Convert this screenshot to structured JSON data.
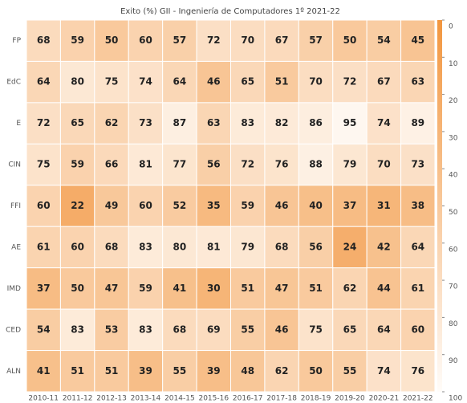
{
  "chart_data": {
    "type": "heatmap",
    "title": "Exito (%) GII - Ingeniería de Computadores 1º 2021-22",
    "categories": [
      "2010-11",
      "2011-12",
      "2012-13",
      "2013-14",
      "2014-15",
      "2015-16",
      "2016-17",
      "2017-18",
      "2018-19",
      "2019-20",
      "2020-21",
      "2021-22"
    ],
    "y_categories": [
      "FP",
      "EdC",
      "E",
      "CIN",
      "FFI",
      "AE",
      "IMD",
      "CED",
      "ALN"
    ],
    "values": [
      [
        68,
        59,
        50,
        60,
        57,
        72,
        70,
        67,
        57,
        50,
        54,
        45
      ],
      [
        64,
        80,
        75,
        74,
        64,
        46,
        65,
        51,
        70,
        72,
        67,
        63
      ],
      [
        72,
        65,
        62,
        73,
        87,
        63,
        83,
        82,
        86,
        95,
        74,
        89
      ],
      [
        75,
        59,
        66,
        81,
        77,
        56,
        72,
        76,
        88,
        79,
        70,
        73
      ],
      [
        60,
        22,
        49,
        60,
        52,
        35,
        59,
        46,
        40,
        37,
        31,
        38
      ],
      [
        61,
        60,
        68,
        83,
        80,
        81,
        79,
        68,
        56,
        24,
        42,
        64
      ],
      [
        37,
        50,
        47,
        59,
        41,
        30,
        51,
        47,
        51,
        62,
        44,
        61
      ],
      [
        54,
        83,
        53,
        83,
        68,
        69,
        55,
        46,
        75,
        65,
        64,
        60
      ],
      [
        41,
        51,
        51,
        39,
        55,
        39,
        48,
        62,
        50,
        55,
        74,
        76
      ]
    ],
    "color_low": "#f2963f",
    "color_high": "#fffcf9",
    "clim": [
      0,
      100
    ],
    "cticks": [
      0,
      10,
      20,
      30,
      40,
      50,
      60,
      70,
      80,
      90,
      100
    ]
  }
}
